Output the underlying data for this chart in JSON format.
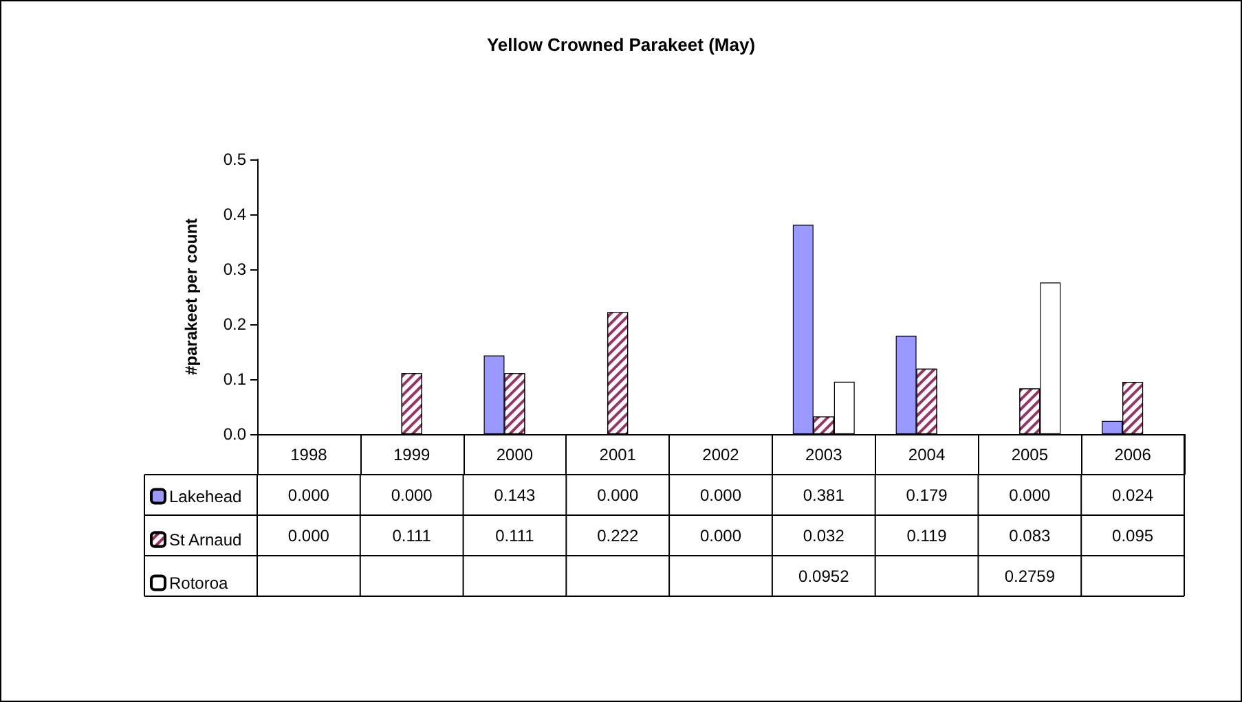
{
  "chart_data": {
    "type": "bar",
    "title": "Yellow Crowned Parakeet (May)",
    "ylabel": "#parakeet per count",
    "categories": [
      "1998",
      "1999",
      "2000",
      "2001",
      "2002",
      "2003",
      "2004",
      "2005",
      "2006"
    ],
    "series": [
      {
        "name": "Lakehead",
        "color": "#9999ff",
        "values": [
          0,
          0,
          0.143,
          0,
          0,
          0.381,
          0.179,
          0,
          0.024
        ],
        "value_labels": [
          "0.000",
          "0.000",
          "0.143",
          "0.000",
          "0.000",
          "0.381",
          "0.179",
          "0.000",
          "0.024"
        ]
      },
      {
        "name": "St Arnaud",
        "color": "#993366",
        "values": [
          0,
          0.111,
          0.111,
          0.222,
          0,
          0.032,
          0.119,
          0.083,
          0.095
        ],
        "value_labels": [
          "0.000",
          "0.111",
          "0.111",
          "0.222",
          "0.000",
          "0.032",
          "0.119",
          "0.083",
          "0.095"
        ]
      },
      {
        "name": "Rotoroa",
        "color": "#ffffff",
        "values": [
          null,
          null,
          null,
          null,
          null,
          0.0952,
          null,
          0.2759,
          null
        ],
        "value_labels": [
          null,
          null,
          null,
          null,
          null,
          "0.0952",
          null,
          "0.2759",
          null
        ]
      }
    ],
    "ylim": [
      0,
      0.5
    ],
    "yticks": [
      {
        "value": 0,
        "label": "0.0"
      },
      {
        "value": 0.1,
        "label": "0.1"
      },
      {
        "value": 0.2,
        "label": "0.2"
      },
      {
        "value": 0.3,
        "label": "0.3"
      },
      {
        "value": 0.4,
        "label": "0.4"
      },
      {
        "value": 0.5,
        "label": "0.5"
      }
    ],
    "grid": false,
    "legend": "bottom left"
  }
}
